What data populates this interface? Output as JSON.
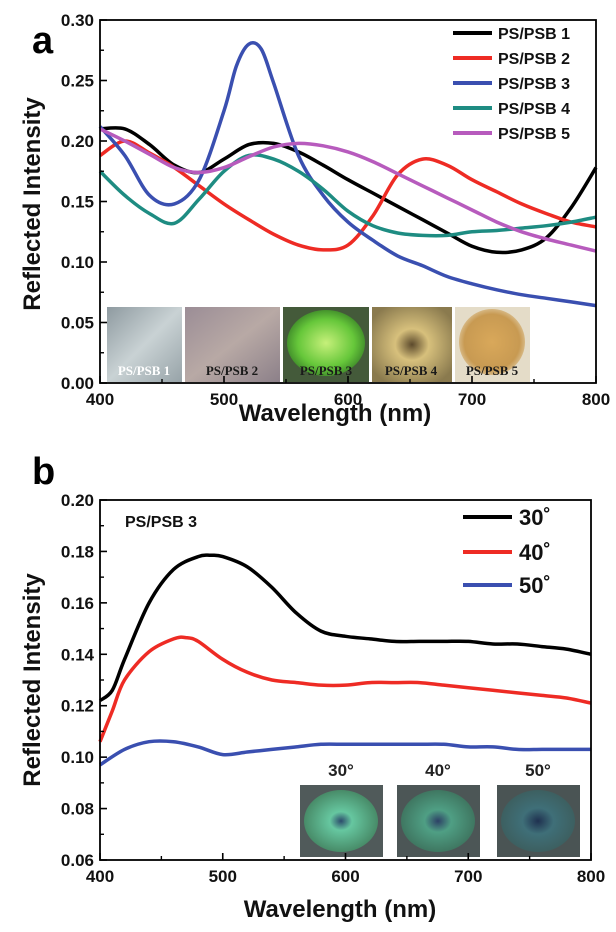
{
  "chart_data": [
    {
      "panel_label": "a",
      "type": "line",
      "xlabel": "Wavelength (nm)",
      "ylabel": "Reflected Intensity",
      "xlim": [
        400,
        800
      ],
      "ylim": [
        0.0,
        0.3
      ],
      "x_ticks": [
        "400",
        "500",
        "600",
        "700",
        "800"
      ],
      "y_ticks": [
        "0.00",
        "0.05",
        "0.10",
        "0.15",
        "0.20",
        "0.25",
        "0.30"
      ],
      "legend_position": "top-right",
      "series": [
        {
          "name": "PS/PSB 1",
          "color": "#000000",
          "x": [
            400,
            420,
            440,
            460,
            480,
            500,
            520,
            540,
            560,
            580,
            600,
            620,
            640,
            660,
            680,
            700,
            720,
            740,
            760,
            780,
            800
          ],
          "y": [
            0.21,
            0.21,
            0.197,
            0.18,
            0.174,
            0.185,
            0.197,
            0.198,
            0.191,
            0.18,
            0.168,
            0.157,
            0.146,
            0.135,
            0.124,
            0.113,
            0.108,
            0.11,
            0.12,
            0.145,
            0.178
          ]
        },
        {
          "name": "PS/PSB 2",
          "color": "#ee2b24",
          "x": [
            400,
            420,
            440,
            460,
            480,
            500,
            520,
            540,
            560,
            580,
            600,
            620,
            640,
            660,
            680,
            700,
            720,
            740,
            760,
            780,
            800
          ],
          "y": [
            0.188,
            0.2,
            0.19,
            0.178,
            0.163,
            0.148,
            0.135,
            0.123,
            0.114,
            0.11,
            0.114,
            0.138,
            0.172,
            0.185,
            0.18,
            0.168,
            0.158,
            0.148,
            0.14,
            0.133,
            0.129
          ]
        },
        {
          "name": "PS/PSB 3",
          "color": "#3a4fb0",
          "x": [
            400,
            420,
            440,
            460,
            480,
            500,
            510,
            520,
            530,
            540,
            560,
            580,
            600,
            620,
            640,
            660,
            680,
            700,
            720,
            740,
            760,
            780,
            800
          ],
          "y": [
            0.212,
            0.188,
            0.155,
            0.148,
            0.168,
            0.225,
            0.262,
            0.28,
            0.276,
            0.248,
            0.188,
            0.155,
            0.133,
            0.118,
            0.105,
            0.097,
            0.088,
            0.082,
            0.077,
            0.073,
            0.07,
            0.067,
            0.064
          ]
        },
        {
          "name": "PS/PSB 4",
          "color": "#1e8c82",
          "x": [
            400,
            420,
            440,
            460,
            480,
            500,
            520,
            540,
            560,
            580,
            600,
            620,
            640,
            660,
            680,
            700,
            720,
            740,
            760,
            780,
            800
          ],
          "y": [
            0.175,
            0.155,
            0.14,
            0.132,
            0.152,
            0.175,
            0.188,
            0.185,
            0.175,
            0.16,
            0.142,
            0.13,
            0.124,
            0.122,
            0.122,
            0.125,
            0.126,
            0.128,
            0.13,
            0.133,
            0.137
          ]
        },
        {
          "name": "PS/PSB 5",
          "color": "#b75bbd",
          "x": [
            400,
            420,
            440,
            460,
            480,
            500,
            520,
            540,
            560,
            580,
            600,
            620,
            640,
            660,
            680,
            700,
            720,
            740,
            760,
            780,
            800
          ],
          "y": [
            0.21,
            0.2,
            0.189,
            0.178,
            0.174,
            0.178,
            0.187,
            0.195,
            0.198,
            0.196,
            0.191,
            0.183,
            0.173,
            0.163,
            0.153,
            0.143,
            0.133,
            0.125,
            0.119,
            0.114,
            0.109
          ]
        }
      ],
      "inset_labels": [
        "PS/PSB 1",
        "PS/PSB 2",
        "PS/PSB 3",
        "PS/PSB 4",
        "PS/PSB 5"
      ]
    },
    {
      "panel_label": "b",
      "type": "line",
      "xlabel": "Wavelength (nm)",
      "ylabel": "Reflected Intensity",
      "annotation": "PS/PSB 3",
      "xlim": [
        400,
        800
      ],
      "ylim": [
        0.06,
        0.2
      ],
      "x_ticks": [
        "400",
        "500",
        "600",
        "700",
        "800"
      ],
      "y_ticks": [
        "0.06",
        "0.08",
        "0.10",
        "0.12",
        "0.14",
        "0.16",
        "0.18",
        "0.20"
      ],
      "legend_position": "top-right",
      "series": [
        {
          "name": "30˚",
          "color": "#000000",
          "x": [
            400,
            410,
            420,
            440,
            460,
            480,
            490,
            500,
            520,
            540,
            560,
            580,
            600,
            620,
            640,
            660,
            680,
            700,
            720,
            740,
            760,
            780,
            800
          ],
          "y": [
            0.122,
            0.126,
            0.138,
            0.16,
            0.173,
            0.178,
            0.1785,
            0.178,
            0.174,
            0.166,
            0.156,
            0.149,
            0.147,
            0.146,
            0.145,
            0.145,
            0.145,
            0.145,
            0.144,
            0.144,
            0.143,
            0.142,
            0.14
          ]
        },
        {
          "name": "40˚",
          "color": "#ee2b24",
          "x": [
            400,
            410,
            420,
            440,
            460,
            470,
            480,
            500,
            520,
            540,
            560,
            580,
            600,
            620,
            640,
            660,
            680,
            700,
            720,
            740,
            760,
            780,
            800
          ],
          "y": [
            0.106,
            0.118,
            0.13,
            0.141,
            0.146,
            0.1465,
            0.145,
            0.138,
            0.133,
            0.13,
            0.129,
            0.128,
            0.128,
            0.129,
            0.129,
            0.129,
            0.128,
            0.127,
            0.126,
            0.125,
            0.124,
            0.123,
            0.121
          ]
        },
        {
          "name": "50˚",
          "color": "#3a4fb0",
          "x": [
            400,
            420,
            440,
            460,
            480,
            500,
            520,
            540,
            560,
            580,
            600,
            620,
            640,
            660,
            680,
            700,
            720,
            740,
            760,
            780,
            800
          ],
          "y": [
            0.097,
            0.103,
            0.106,
            0.106,
            0.104,
            0.101,
            0.102,
            0.103,
            0.104,
            0.105,
            0.105,
            0.105,
            0.105,
            0.105,
            0.105,
            0.104,
            0.104,
            0.103,
            0.103,
            0.103,
            0.103
          ]
        }
      ],
      "inset_labels": [
        "30°",
        "40°",
        "50°"
      ]
    }
  ]
}
